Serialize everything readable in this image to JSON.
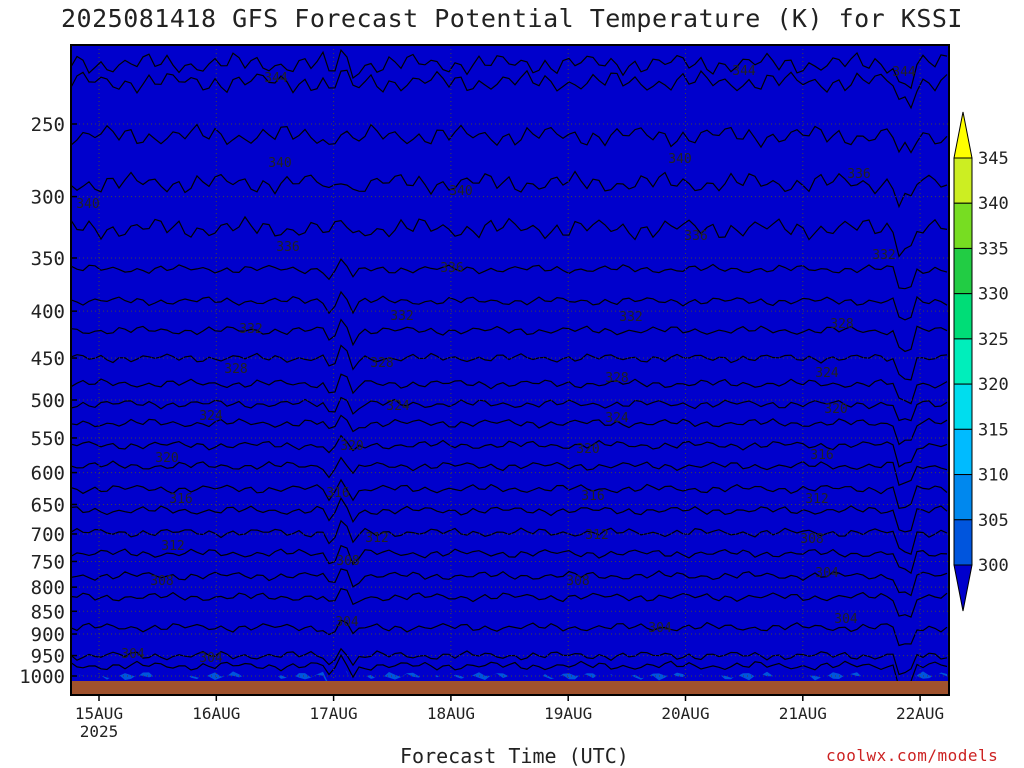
{
  "chart_data": {
    "type": "heatmap",
    "title": "2025081418 GFS Forecast Potential Temperature (K) for KSSI",
    "xlabel": "Forecast Time (UTC)",
    "ylabel": "",
    "x_ticks": [
      "15AUG",
      "16AUG",
      "17AUG",
      "18AUG",
      "19AUG",
      "20AUG",
      "21AUG",
      "22AUG"
    ],
    "x_year_label": "2025",
    "y_ticks": [
      250,
      300,
      350,
      400,
      450,
      500,
      550,
      600,
      650,
      700,
      750,
      800,
      850,
      900,
      950,
      1000
    ],
    "y_scale": "pressure (log), inverted",
    "ylim": [
      1000,
      200
    ],
    "colorbar": {
      "labels": [
        345,
        340,
        335,
        330,
        325,
        320,
        315,
        310,
        305,
        300
      ],
      "bands": [
        {
          "lo": 345,
          "hi": 350,
          "color": "#ffff00"
        },
        {
          "lo": 340,
          "hi": 345,
          "color": "#ccee22"
        },
        {
          "lo": 335,
          "hi": 340,
          "color": "#77dd22"
        },
        {
          "lo": 330,
          "hi": 335,
          "color": "#22cc44"
        },
        {
          "lo": 325,
          "hi": 330,
          "color": "#00dd77"
        },
        {
          "lo": 320,
          "hi": 325,
          "color": "#00eebb"
        },
        {
          "lo": 315,
          "hi": 320,
          "color": "#00ddee"
        },
        {
          "lo": 310,
          "hi": 315,
          "color": "#00bbff"
        },
        {
          "lo": 305,
          "hi": 310,
          "color": "#0088ee"
        },
        {
          "lo": 300,
          "hi": 305,
          "color": "#0055dd"
        },
        {
          "lo": 295,
          "hi": 300,
          "color": "#0000cc"
        }
      ]
    },
    "contour_levels": [
      304,
      308,
      312,
      316,
      320,
      324,
      328,
      332,
      336,
      340,
      344
    ],
    "contour_label_levels": [
      344,
      340,
      340,
      336,
      336,
      332,
      332,
      328,
      328,
      324,
      324,
      320,
      320,
      316,
      316,
      312,
      312,
      308,
      308,
      304,
      304,
      304,
      344,
      340,
      336,
      332,
      328,
      324,
      320,
      316,
      312,
      308,
      304,
      344,
      340,
      336,
      332,
      328,
      324,
      320,
      316,
      312,
      308,
      304,
      304
    ],
    "grid": "dotted",
    "ground_color": "#a0522d"
  },
  "credit": "coolwx.com/models"
}
